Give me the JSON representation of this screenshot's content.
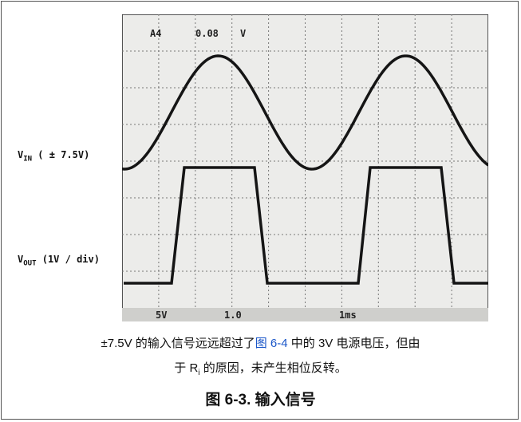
{
  "figure": {
    "scope": {
      "channel": "A4",
      "level": "0.08",
      "level_unit": "V",
      "scale_1": "5V",
      "scale_2": "1.0",
      "timebase": "1ms"
    },
    "labels": {
      "vin": {
        "main": "V",
        "sub": "IN",
        "rest": " ( ± 7.5V)"
      },
      "vout": {
        "main": "V",
        "sub": "OUT",
        "rest": " (1V / div)"
      }
    },
    "caption": {
      "line1_a": "±7.5V 的输入信号远远超过了",
      "link": "图 6-4",
      "line1_b": " 中的 3V 电源电压，但由",
      "line2_a": "于 R",
      "line2_sub": "i",
      "line2_b": " 的原因，未产生相位反转。"
    },
    "title": "图 6-3. 输入信号"
  }
}
